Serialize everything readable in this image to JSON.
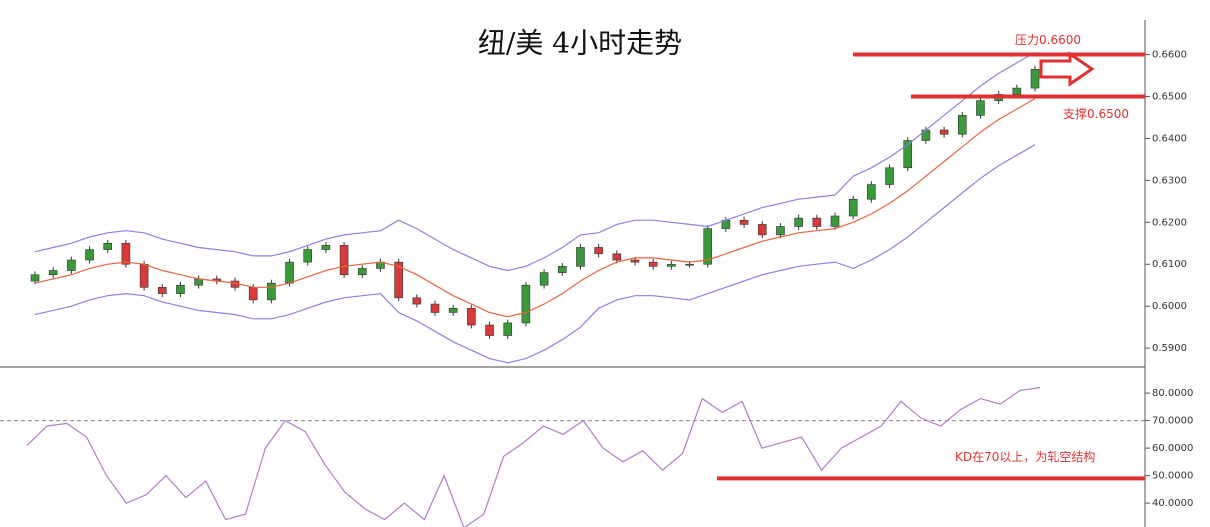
{
  "chart_data": [
    {
      "type": "candlestick",
      "title": "纽/美 4小时走势",
      "open": [
        0.606,
        0.6075,
        0.6085,
        0.611,
        0.6135,
        0.615,
        0.61,
        0.6045,
        0.603,
        0.605,
        0.6065,
        0.606,
        0.6045,
        0.6015,
        0.6055,
        0.6105,
        0.6135,
        0.6145,
        0.6075,
        0.609,
        0.6105,
        0.602,
        0.6005,
        0.5985,
        0.5995,
        0.5955,
        0.593,
        0.596,
        0.605,
        0.608,
        0.6095,
        0.614,
        0.6125,
        0.611,
        0.6105,
        0.6095,
        0.61,
        0.61,
        0.6185,
        0.6205,
        0.6195,
        0.617,
        0.619,
        0.621,
        0.619,
        0.6215,
        0.6255,
        0.629,
        0.633,
        0.6395,
        0.642,
        0.641,
        0.6455,
        0.649,
        0.6505,
        0.652
      ],
      "high": [
        0.6083,
        0.6093,
        0.6118,
        0.6143,
        0.6158,
        0.6158,
        0.6108,
        0.6053,
        0.6058,
        0.6073,
        0.6073,
        0.6068,
        0.6053,
        0.6063,
        0.6113,
        0.6143,
        0.6153,
        0.6153,
        0.6098,
        0.6113,
        0.6113,
        0.6028,
        0.6013,
        0.6003,
        0.6003,
        0.5963,
        0.5968,
        0.6058,
        0.6088,
        0.6103,
        0.6148,
        0.6148,
        0.6133,
        0.6118,
        0.6113,
        0.6108,
        0.6108,
        0.6193,
        0.6213,
        0.6213,
        0.6203,
        0.6198,
        0.6218,
        0.6218,
        0.6223,
        0.6263,
        0.6298,
        0.6338,
        0.6403,
        0.6428,
        0.6428,
        0.6463,
        0.6498,
        0.6513,
        0.6528,
        0.6573
      ],
      "low": [
        0.6052,
        0.6067,
        0.6077,
        0.6102,
        0.6127,
        0.6092,
        0.6037,
        0.6022,
        0.6022,
        0.6042,
        0.6052,
        0.6037,
        0.6007,
        0.6007,
        0.6047,
        0.6097,
        0.6127,
        0.6067,
        0.6067,
        0.6082,
        0.6012,
        0.5997,
        0.5977,
        0.5977,
        0.5947,
        0.5922,
        0.5922,
        0.5952,
        0.6042,
        0.6072,
        0.6087,
        0.6117,
        0.6102,
        0.6097,
        0.6087,
        0.6087,
        0.6092,
        0.6092,
        0.6177,
        0.6187,
        0.6162,
        0.6162,
        0.6182,
        0.6182,
        0.6182,
        0.6207,
        0.6247,
        0.6282,
        0.6322,
        0.6387,
        0.6402,
        0.6402,
        0.6447,
        0.6482,
        0.6497,
        0.6512
      ],
      "close": [
        0.6075,
        0.6085,
        0.611,
        0.6135,
        0.615,
        0.61,
        0.6045,
        0.603,
        0.605,
        0.6065,
        0.606,
        0.6045,
        0.6015,
        0.6055,
        0.6105,
        0.6135,
        0.6145,
        0.6075,
        0.609,
        0.6105,
        0.602,
        0.6005,
        0.5985,
        0.5995,
        0.5955,
        0.593,
        0.596,
        0.605,
        0.608,
        0.6095,
        0.614,
        0.6125,
        0.611,
        0.6105,
        0.6095,
        0.61,
        0.61,
        0.6185,
        0.6205,
        0.6195,
        0.617,
        0.619,
        0.621,
        0.619,
        0.6215,
        0.6255,
        0.629,
        0.633,
        0.6395,
        0.642,
        0.641,
        0.6455,
        0.649,
        0.6505,
        0.652,
        0.6565
      ],
      "up_color": "#3a9a3a",
      "down_color": "#d83a3a",
      "bands": {
        "upper": {
          "color": "#8a82e0",
          "values": [
            0.613,
            0.614,
            0.615,
            0.6165,
            0.6175,
            0.618,
            0.6175,
            0.616,
            0.615,
            0.614,
            0.6135,
            0.613,
            0.612,
            0.612,
            0.613,
            0.6145,
            0.616,
            0.617,
            0.6175,
            0.618,
            0.6205,
            0.6185,
            0.616,
            0.6135,
            0.6115,
            0.6095,
            0.6085,
            0.6095,
            0.6115,
            0.614,
            0.617,
            0.6175,
            0.6195,
            0.6205,
            0.6205,
            0.62,
            0.6195,
            0.619,
            0.6205,
            0.622,
            0.6235,
            0.6245,
            0.6255,
            0.626,
            0.6265,
            0.631,
            0.633,
            0.6355,
            0.6385,
            0.642,
            0.6455,
            0.649,
            0.6525,
            0.6555,
            0.658,
            0.6605
          ]
        },
        "middle": {
          "color": "#e8643c",
          "values": [
            0.6055,
            0.6065,
            0.6075,
            0.609,
            0.61,
            0.6105,
            0.61,
            0.6085,
            0.6075,
            0.6065,
            0.606,
            0.6055,
            0.6045,
            0.6045,
            0.6055,
            0.607,
            0.6085,
            0.6095,
            0.61,
            0.6105,
            0.6095,
            0.6075,
            0.605,
            0.6025,
            0.6005,
            0.5985,
            0.5975,
            0.5985,
            0.6005,
            0.603,
            0.606,
            0.6085,
            0.6105,
            0.6115,
            0.6115,
            0.611,
            0.6105,
            0.611,
            0.6125,
            0.614,
            0.6155,
            0.6165,
            0.6175,
            0.618,
            0.6185,
            0.62,
            0.622,
            0.6245,
            0.6275,
            0.631,
            0.6345,
            0.638,
            0.6415,
            0.6445,
            0.647,
            0.6495
          ]
        },
        "lower": {
          "color": "#8a82e0",
          "values": [
            0.598,
            0.599,
            0.6,
            0.6015,
            0.6025,
            0.603,
            0.6025,
            0.601,
            0.6,
            0.599,
            0.5985,
            0.598,
            0.597,
            0.597,
            0.598,
            0.5995,
            0.601,
            0.602,
            0.6025,
            0.603,
            0.5985,
            0.5965,
            0.594,
            0.5915,
            0.5895,
            0.5875,
            0.5865,
            0.5875,
            0.5895,
            0.592,
            0.595,
            0.5995,
            0.6015,
            0.6025,
            0.6025,
            0.602,
            0.6015,
            0.603,
            0.6045,
            0.606,
            0.6075,
            0.6085,
            0.6095,
            0.61,
            0.6105,
            0.609,
            0.611,
            0.6135,
            0.6165,
            0.62,
            0.6235,
            0.627,
            0.6305,
            0.6335,
            0.636,
            0.6385
          ]
        }
      },
      "ylim": [
        0.5855,
        0.673
      ],
      "yticks": [
        {
          "value": 0.59,
          "label": "0.5900"
        },
        {
          "value": 0.6,
          "label": "0.6000"
        },
        {
          "value": 0.61,
          "label": "0.6100"
        },
        {
          "value": 0.62,
          "label": "0.6200"
        },
        {
          "value": 0.63,
          "label": "0.6300"
        },
        {
          "value": 0.64,
          "label": "0.6400"
        },
        {
          "value": 0.65,
          "label": "0.6500"
        },
        {
          "value": 0.66,
          "label": "0.6600"
        }
      ],
      "annotations": [
        {
          "text": "压力0.6600",
          "value": 0.66,
          "color": "#e03030"
        },
        {
          "text": "支撑0.6500",
          "value": 0.65,
          "color": "#e03030"
        }
      ]
    },
    {
      "type": "line",
      "color": "#b07cc6",
      "values": [
        61,
        68,
        69,
        64,
        50,
        40,
        43,
        50,
        42,
        48,
        34,
        36,
        60,
        70,
        66,
        54,
        44,
        38,
        34,
        40,
        34,
        50,
        31,
        36,
        57,
        62,
        68,
        65,
        70,
        60,
        55,
        59,
        52,
        58,
        78,
        73,
        77,
        60,
        62,
        64,
        52,
        60,
        64,
        68,
        77,
        71,
        68,
        74,
        78,
        76,
        81,
        82
      ],
      "ylim": [
        31.3,
        89.5
      ],
      "yticks": [
        {
          "value": 40,
          "label": "40.0000"
        },
        {
          "value": 50,
          "label": "50.0000"
        },
        {
          "value": 60,
          "label": "60.0000"
        },
        {
          "value": 70,
          "label": "70.0000"
        },
        {
          "value": 80,
          "label": "80.0000"
        }
      ],
      "reference_line": 70,
      "annotations": [
        {
          "text": "KD在70以上，为轧空结构",
          "value": 49,
          "color": "#e03030"
        }
      ]
    }
  ]
}
